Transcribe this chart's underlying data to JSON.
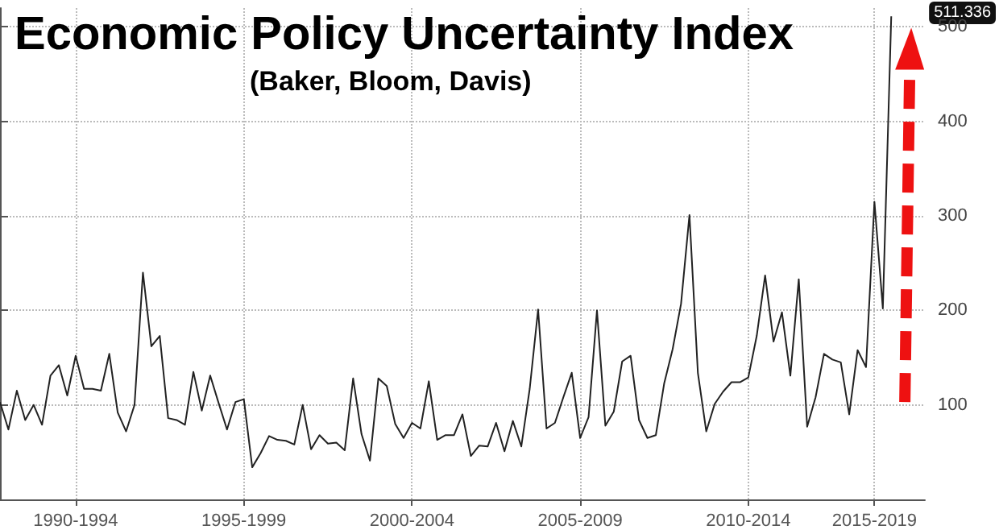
{
  "chart_data": {
    "type": "line",
    "title": "Economic Policy Uncertainty Index",
    "subtitle": "(Baker, Bloom, Davis)",
    "categories": [
      null,
      null,
      null,
      null,
      null,
      null,
      null,
      null,
      null,
      "1990-1994",
      null,
      null,
      null,
      null,
      null,
      null,
      null,
      null,
      null,
      null,
      null,
      null,
      null,
      null,
      null,
      null,
      null,
      null,
      null,
      "1995-1999",
      null,
      null,
      null,
      null,
      null,
      null,
      null,
      null,
      null,
      null,
      null,
      null,
      null,
      null,
      null,
      null,
      null,
      null,
      null,
      "2000-2004",
      null,
      null,
      null,
      null,
      null,
      null,
      null,
      null,
      null,
      null,
      null,
      null,
      null,
      null,
      null,
      null,
      null,
      null,
      null,
      "2005-2009",
      null,
      null,
      null,
      null,
      null,
      null,
      null,
      null,
      null,
      null,
      null,
      null,
      null,
      null,
      null,
      null,
      null,
      null,
      null,
      "2010-2014",
      null,
      null,
      null,
      null,
      null,
      null,
      null,
      null,
      null,
      null,
      null,
      null,
      null,
      null,
      "2015-2019",
      null,
      null
    ],
    "series": [
      {
        "color": "#222222",
        "values": [
          103,
          74,
          115,
          84,
          100,
          79,
          131,
          142,
          110,
          152,
          117,
          117,
          115,
          154,
          92,
          72,
          100,
          240,
          162,
          173,
          86,
          84,
          79,
          135,
          94,
          131,
          102,
          74,
          103,
          106,
          34,
          49,
          67,
          63,
          62,
          58,
          100,
          53,
          68,
          59,
          60,
          52,
          128,
          69,
          41,
          128,
          120,
          80,
          65,
          81,
          75,
          125,
          63,
          68,
          68,
          90,
          46,
          57,
          56,
          81,
          51,
          83,
          56,
          117,
          201,
          75,
          81,
          108,
          134,
          65,
          87,
          200,
          78,
          93,
          146,
          152,
          84,
          65,
          68,
          123,
          159,
          207,
          301,
          134,
          72,
          101,
          114,
          124,
          124,
          129,
          173,
          237,
          167,
          198,
          131,
          233,
          77,
          108,
          154,
          148,
          145,
          90,
          158,
          140,
          315,
          202,
          511.336
        ]
      }
    ],
    "ylim": [
      0,
      520
    ],
    "yticks": [
      100,
      200,
      300,
      400,
      500
    ],
    "grid": true,
    "annotations": [
      "511.336"
    ]
  }
}
